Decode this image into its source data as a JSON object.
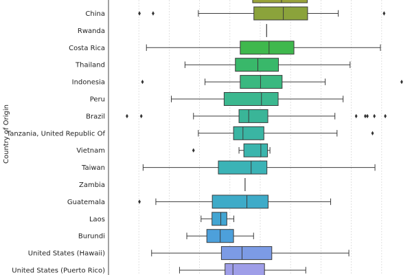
{
  "chart_data": {
    "type": "boxplot",
    "orientation": "horizontal",
    "ylabel": "Country of Origin",
    "xlim": [
      0,
      100
    ],
    "grid_x": [
      10,
      20,
      30,
      40,
      50,
      60,
      70,
      80,
      90
    ],
    "categories": [
      "China",
      "Rwanda",
      "Costa Rica",
      "Thailand",
      "Indonesia",
      "Peru",
      "Brazil",
      "Tanzania, United Republic Of",
      "Vietnam",
      "Taiwan",
      "Zambia",
      "Guatemala",
      "Laos",
      "Burundi",
      "United States (Hawaii)",
      "United States (Puerto Rico)"
    ],
    "boxes": [
      {
        "label": "China",
        "whislo": 29.6,
        "q1": 47.9,
        "med": 57.6,
        "q3": 65.6,
        "whishi": 75.7,
        "fliers": [
          10.2,
          14.7,
          90.8
        ],
        "color": "#8ba33b"
      },
      {
        "label": "Rwanda",
        "whislo": 52.1,
        "q1": 52.1,
        "med": 52.1,
        "q3": 52.1,
        "whishi": 52.1,
        "fliers": [],
        "color": "#7fae3b"
      },
      {
        "label": "Costa Rica",
        "whislo": 12.5,
        "q1": 43.4,
        "med": 52.9,
        "q3": 61.1,
        "whishi": 89.6,
        "fliers": [],
        "color": "#3fb84d"
      },
      {
        "label": "Thailand",
        "whislo": 25.2,
        "q1": 41.8,
        "med": 49.2,
        "q3": 56.0,
        "whishi": 79.6,
        "fliers": [],
        "color": "#39b86a"
      },
      {
        "label": "Indonesia",
        "whislo": 31.8,
        "q1": 43.4,
        "med": 50.1,
        "q3": 57.2,
        "whishi": 71.4,
        "fliers": [
          11.2,
          96.6
        ],
        "color": "#3ab880"
      },
      {
        "label": "Peru",
        "whislo": 20.7,
        "q1": 38.1,
        "med": 50.4,
        "q3": 55.9,
        "whishi": 77.3,
        "fliers": [],
        "color": "#3bb88f"
      },
      {
        "label": "Brazil",
        "whislo": 28.0,
        "q1": 43.0,
        "med": 46.2,
        "q3": 52.5,
        "whishi": 74.6,
        "fliers": [
          6.1,
          10.8,
          81.6,
          84.6,
          85.3,
          87.6,
          91.2
        ],
        "color": "#3ab598"
      },
      {
        "label": "Tanzania, United Republic Of",
        "whislo": 29.6,
        "q1": 41.2,
        "med": 44.3,
        "q3": 51.2,
        "whishi": 75.3,
        "fliers": [
          87.0
        ],
        "color": "#3ab5a3"
      },
      {
        "label": "Vietnam",
        "whislo": 43.0,
        "q1": 44.6,
        "med": 50.2,
        "q3": 52.4,
        "whishi": 53.2,
        "fliers": [
          28.0
        ],
        "color": "#3ab5ad"
      },
      {
        "label": "Taiwan",
        "whislo": 11.4,
        "q1": 36.2,
        "med": 47.0,
        "q3": 52.2,
        "whishi": 87.8,
        "fliers": [],
        "color": "#3bb3b6"
      },
      {
        "label": "Zambia",
        "whislo": 45.0,
        "q1": 45.0,
        "med": 45.0,
        "q3": 45.0,
        "whishi": 45.0,
        "fliers": [],
        "color": "#3cb0bf"
      },
      {
        "label": "Guatemala",
        "whislo": 15.6,
        "q1": 34.2,
        "med": 45.6,
        "q3": 52.6,
        "whishi": 73.2,
        "fliers": [
          10.2
        ],
        "color": "#3eabc8"
      },
      {
        "label": "Laos",
        "whislo": 30.5,
        "q1": 34.1,
        "med": 37.0,
        "q3": 39.0,
        "whishi": 41.3,
        "fliers": [],
        "color": "#42a5d2"
      },
      {
        "label": "Burundi",
        "whislo": 25.8,
        "q1": 32.4,
        "med": 36.8,
        "q3": 41.2,
        "whishi": 47.8,
        "fliers": [],
        "color": "#4da0db"
      },
      {
        "label": "United States (Hawaii)",
        "whislo": 14.2,
        "q1": 37.2,
        "med": 44.0,
        "q3": 53.8,
        "whishi": 79.2,
        "fliers": [],
        "color": "#7c9be5"
      },
      {
        "label": "United States (Puerto Rico)",
        "whislo": 23.4,
        "q1": 38.4,
        "med": 41.0,
        "q3": 51.4,
        "whishi": 65.0,
        "fliers": [],
        "color": "#9f9ee8"
      }
    ]
  }
}
